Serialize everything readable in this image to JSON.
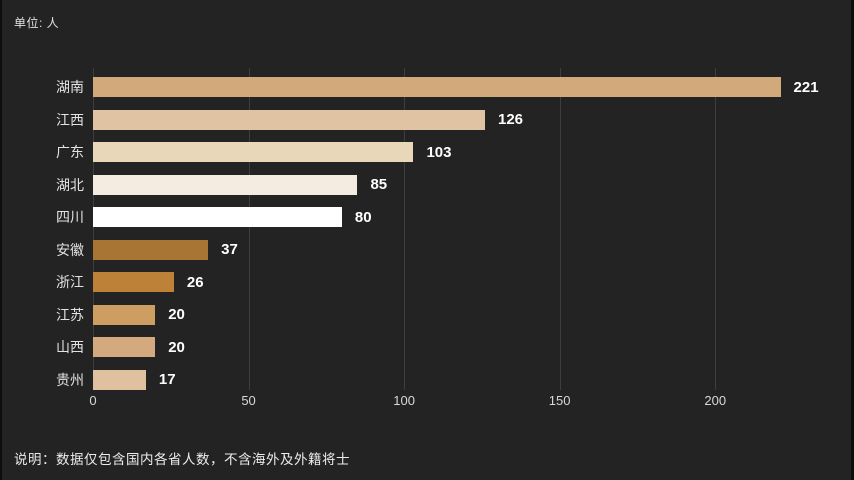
{
  "meta": {
    "unit_label": "单位: 人",
    "note": "说明：数据仅包含国内各省人数，不含海外及外籍将士"
  },
  "colors": {
    "background": "#232323",
    "edge_strip": "#0d0d0d",
    "gridline": "#3e3e3e",
    "category_label": "#e3e3e3",
    "value_label": "#ffffff",
    "tick_label": "#d8d8d8"
  },
  "chart_data": {
    "type": "bar",
    "orientation": "horizontal",
    "title": "",
    "xlabel": "",
    "ylabel": "",
    "categories": [
      "湖南",
      "江西",
      "广东",
      "湖北",
      "四川",
      "安徽",
      "浙江",
      "江苏",
      "山西",
      "贵州"
    ],
    "values": [
      221,
      126,
      103,
      85,
      80,
      37,
      26,
      20,
      20,
      17
    ],
    "bar_colors": [
      "#d2a97b",
      "#dfc3a2",
      "#e9d7ba",
      "#f5ece1",
      "#ffffff",
      "#a87534",
      "#bd8238",
      "#cd9d61",
      "#d3aa7d",
      "#dfc1a0"
    ],
    "x_ticks": [
      0,
      50,
      100,
      150,
      200
    ],
    "xlim": [
      0,
      225
    ],
    "grid": true,
    "legend": "none",
    "value_labels_shown": true
  }
}
